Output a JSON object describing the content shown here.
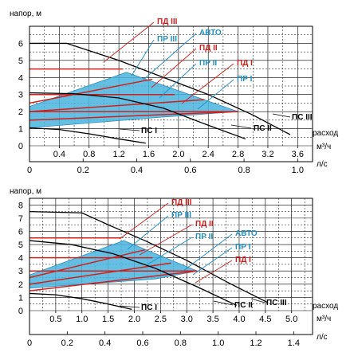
{
  "chart_data": [
    {
      "type": "line",
      "ylabel": "напор, м",
      "xlabel_flow": "расход",
      "xunit_top": "м³/ч",
      "xunit_bottom": "л/с",
      "ylim": [
        0,
        7
      ],
      "xlim": [
        0,
        3.8
      ],
      "y_ticks": [
        "0",
        "1",
        "2",
        "3",
        "4",
        "5",
        "6"
      ],
      "x_ticks_top": [
        "0.4",
        "0.8",
        "1.2",
        "1.6",
        "2.0",
        "2.4",
        "2.8",
        "3.2",
        "3.6"
      ],
      "x_ticks_bottom": [
        "0",
        "0.2",
        "0.4",
        "0.6",
        "0.8",
        "1.0"
      ],
      "speed_curves": [
        {
          "name": "ПС I",
          "x": [
            0,
            0.4,
            0.8,
            1.2,
            1.56
          ],
          "y": [
            1.05,
            0.95,
            0.7,
            0.4,
            0.15
          ]
        },
        {
          "name": "ПС II",
          "x": [
            0,
            0.6,
            1.2,
            1.8,
            2.4,
            2.9
          ],
          "y": [
            3.1,
            3.05,
            2.8,
            2.2,
            1.2,
            0.4
          ]
        },
        {
          "name": "ПС III",
          "x": [
            0,
            0.5,
            1.2,
            1.8,
            2.4,
            3.0,
            3.5
          ],
          "y": [
            6.0,
            6.0,
            5.0,
            4.0,
            3.0,
            1.8,
            0.65
          ]
        }
      ],
      "const_pressure_curves": [
        {
          "name": "ПД I",
          "x": [
            0,
            2.8
          ],
          "y": [
            2.0,
            2.0
          ]
        },
        {
          "name": "ПД II",
          "x": [
            0,
            1.95
          ],
          "y": [
            3.0,
            3.0
          ]
        },
        {
          "name": "ПД III",
          "x": [
            0,
            1.25
          ],
          "y": [
            4.5,
            4.5
          ]
        }
      ],
      "prop_pressure_curves": [
        {
          "name": "ПР I",
          "x": [
            0,
            2.8
          ],
          "y": [
            1.5,
            2.0
          ]
        },
        {
          "name": "ПР II",
          "x": [
            0,
            2.35
          ],
          "y": [
            2.0,
            2.7
          ]
        },
        {
          "name": "ПР III",
          "x": [
            0,
            1.65
          ],
          "y": [
            2.5,
            3.9
          ]
        }
      ],
      "auto_region": {
        "name": "АВТО",
        "x": [
          0,
          1.3,
          2.8,
          1.7,
          0
        ],
        "y": [
          2.3,
          4.3,
          2.0,
          1.65,
          1.05
        ]
      },
      "labels": {
        "pd3": "ПД III",
        "pr3": "ПР III",
        "auto": "АВТО",
        "pd2": "ПД II",
        "pr2": "ПР II",
        "pd1": "ПД I",
        "pr1": "ПР I",
        "pc1": "ПС I",
        "pc2": "ПС II",
        "pc3": "ПС III"
      }
    },
    {
      "type": "line",
      "ylabel": "напор, м",
      "xlabel_flow": "расход",
      "xunit_top": "м³/ч",
      "xunit_bottom": "л/с",
      "ylim": [
        0,
        8.5
      ],
      "xlim": [
        0,
        5.4
      ],
      "y_ticks": [
        "0",
        "1",
        "2",
        "3",
        "4",
        "5",
        "6",
        "7",
        "8"
      ],
      "x_ticks_top": [
        "0.5",
        "1.0",
        "1.5",
        "2.0",
        "2.5",
        "3.0",
        "3.5",
        "4.0",
        "4.5",
        "5.0"
      ],
      "x_ticks_bottom": [
        "0",
        "0.2",
        "0.4",
        "0.6",
        "0.8",
        "1.0",
        "1.2",
        "1.4"
      ],
      "speed_curves": [
        {
          "name": "ПС I",
          "x": [
            0,
            0.5,
            1.0,
            1.5,
            1.95
          ],
          "y": [
            1.3,
            1.2,
            0.9,
            0.5,
            0.1
          ]
        },
        {
          "name": "ПС II",
          "x": [
            0,
            0.8,
            1.6,
            2.4,
            3.2,
            3.95
          ],
          "y": [
            5.3,
            5.0,
            4.3,
            3.2,
            1.8,
            0.4
          ]
        },
        {
          "name": "ПС III",
          "x": [
            0,
            1.0,
            1.5,
            2.2,
            3.0,
            3.8,
            4.55
          ],
          "y": [
            7.5,
            7.4,
            6.5,
            5.3,
            3.8,
            2.1,
            0.6
          ]
        }
      ],
      "const_pressure_curves": [
        {
          "name": "ПД I",
          "x": [
            0,
            3.2
          ],
          "y": [
            3.0,
            3.0
          ]
        },
        {
          "name": "ПД II",
          "x": [
            0,
            2.35
          ],
          "y": [
            4.0,
            4.0
          ]
        },
        {
          "name": "ПД III",
          "x": [
            0,
            1.75
          ],
          "y": [
            5.5,
            5.5
          ]
        }
      ],
      "prop_pressure_curves": [
        {
          "name": "ПР I",
          "x": [
            0,
            3.2
          ],
          "y": [
            1.5,
            3.0
          ]
        },
        {
          "name": "ПР II",
          "x": [
            0,
            2.7
          ],
          "y": [
            2.0,
            3.6
          ]
        },
        {
          "name": "ПР III",
          "x": [
            0,
            2.2
          ],
          "y": [
            2.5,
            4.6
          ]
        }
      ],
      "auto_region": {
        "name": "АВТО",
        "x": [
          0,
          1.8,
          3.2,
          2.4,
          0
        ],
        "y": [
          2.7,
          5.3,
          3.0,
          2.4,
          1.7
        ]
      },
      "labels": {
        "pd3": "ПД III",
        "pr3": "ПР III",
        "auto": "АВТО",
        "pd2": "ПД II",
        "pr2": "ПР II",
        "pd1": "ПД I",
        "pr1": "ПР I",
        "pc1": "ПС I",
        "pc2": "ПС II",
        "pc3": "ПС III"
      }
    }
  ]
}
